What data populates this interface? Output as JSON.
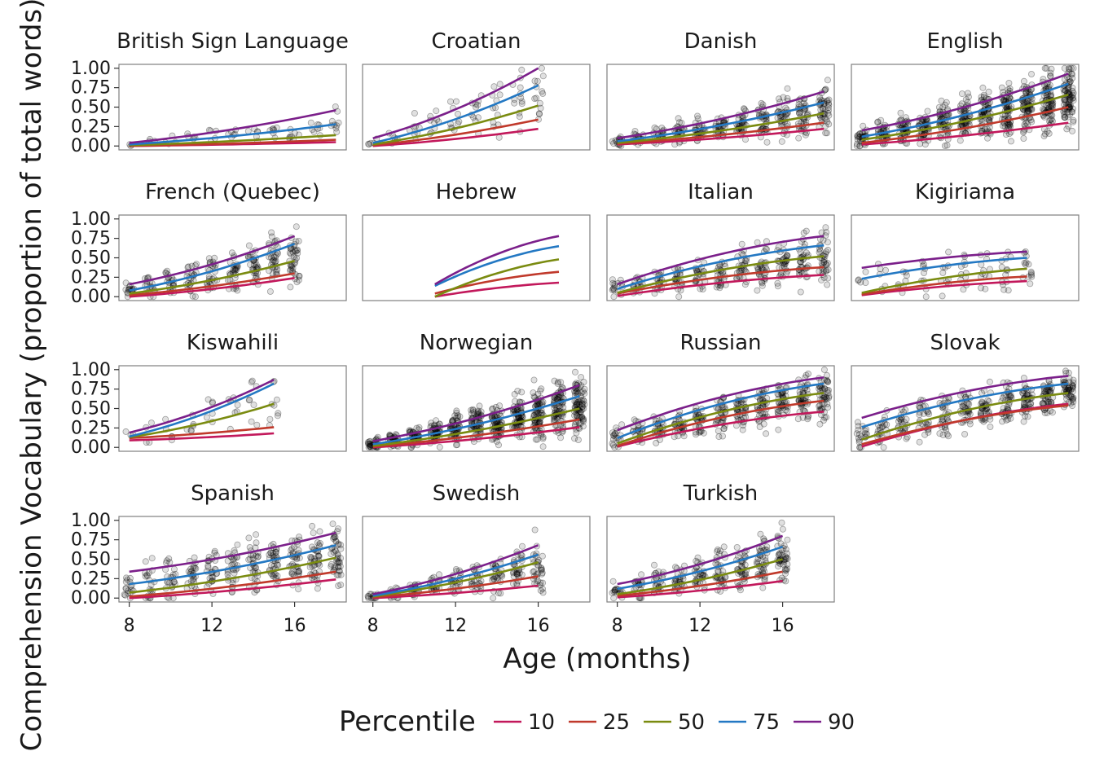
{
  "chart_data": {
    "type": "line",
    "xlabel": "Age (months)",
    "ylabel": "Comprehension Vocabulary (proportion of total words)",
    "xlim": [
      7.5,
      18.5
    ],
    "ylim": [
      -0.05,
      1.05
    ],
    "x_ticks": [
      8,
      12,
      16
    ],
    "y_ticks": [
      0,
      0.25,
      0.5,
      0.75,
      1
    ],
    "y_tick_labels": [
      "0.00",
      "0.25",
      "0.50",
      "0.75",
      "1.00"
    ],
    "legend": {
      "title": "Percentile",
      "position": "bottom",
      "entries": [
        {
          "label": "10",
          "color": "#c2185b"
        },
        {
          "label": "25",
          "color": "#c0392b"
        },
        {
          "label": "50",
          "color": "#7a8b10"
        },
        {
          "label": "75",
          "color": "#2378c3"
        },
        {
          "label": "90",
          "color": "#7b1f8a"
        }
      ]
    },
    "points_note": "individual children shown as semi-transparent grey points",
    "panels": [
      {
        "name": "British Sign Language",
        "xrange": [
          8,
          18
        ],
        "density": 0.3,
        "curves": {
          "10": [
            0.0,
            0.05
          ],
          "25": [
            0.0,
            0.08
          ],
          "50": [
            0.01,
            0.14
          ],
          "75": [
            0.02,
            0.28
          ],
          "90": [
            0.04,
            0.46
          ]
        }
      },
      {
        "name": "Croatian",
        "xrange": [
          8,
          16
        ],
        "density": 0.5,
        "curves": {
          "10": [
            0.0,
            0.22
          ],
          "25": [
            0.01,
            0.34
          ],
          "50": [
            0.02,
            0.52
          ],
          "75": [
            0.04,
            0.78
          ],
          "90": [
            0.1,
            1.0
          ]
        }
      },
      {
        "name": "Danish",
        "xrange": [
          8,
          18
        ],
        "density": 1.6,
        "curves": {
          "10": [
            0.02,
            0.22
          ],
          "25": [
            0.03,
            0.3
          ],
          "50": [
            0.04,
            0.42
          ],
          "75": [
            0.06,
            0.56
          ],
          "90": [
            0.1,
            0.7
          ]
        }
      },
      {
        "name": "English",
        "xrange": [
          8,
          18
        ],
        "density": 3.0,
        "curves": {
          "10": [
            0.02,
            0.3
          ],
          "25": [
            0.04,
            0.5
          ],
          "50": [
            0.08,
            0.66
          ],
          "75": [
            0.12,
            0.8
          ],
          "90": [
            0.2,
            0.93
          ]
        }
      },
      {
        "name": "French (Quebec)",
        "xrange": [
          8,
          16
        ],
        "density": 1.4,
        "curves": {
          "10": [
            0.0,
            0.24
          ],
          "25": [
            0.02,
            0.3
          ],
          "50": [
            0.04,
            0.46
          ],
          "75": [
            0.08,
            0.68
          ],
          "90": [
            0.16,
            0.78
          ]
        }
      },
      {
        "name": "Hebrew",
        "xrange": [
          11,
          17
        ],
        "density": 0.0,
        "curves": {
          "10": [
            0.0,
            0.18
          ],
          "25": [
            0.04,
            0.32
          ],
          "50": [
            0.0,
            0.48
          ],
          "75": [
            0.14,
            0.65
          ],
          "90": [
            0.16,
            0.78
          ]
        }
      },
      {
        "name": "Italian",
        "xrange": [
          8,
          18
        ],
        "density": 1.4,
        "curves": {
          "10": [
            0.01,
            0.28
          ],
          "25": [
            0.04,
            0.38
          ],
          "50": [
            0.05,
            0.52
          ],
          "75": [
            0.1,
            0.66
          ],
          "90": [
            0.16,
            0.78
          ]
        }
      },
      {
        "name": "Kigiriama",
        "xrange": [
          8,
          16
        ],
        "density": 0.5,
        "curves": {
          "10": [
            0.02,
            0.2
          ],
          "25": [
            0.03,
            0.26
          ],
          "50": [
            0.05,
            0.36
          ],
          "75": [
            0.23,
            0.5
          ],
          "90": [
            0.37,
            0.58
          ]
        }
      },
      {
        "name": "Kiswahili",
        "xrange": [
          8,
          15
        ],
        "density": 0.3,
        "curves": {
          "10": [
            0.09,
            0.18
          ],
          "25": [
            0.12,
            0.26
          ],
          "50": [
            0.13,
            0.56
          ],
          "75": [
            0.14,
            0.82
          ],
          "90": [
            0.19,
            0.87
          ]
        }
      },
      {
        "name": "Norwegian",
        "xrange": [
          8,
          18
        ],
        "density": 3.0,
        "curves": {
          "10": [
            0.0,
            0.26
          ],
          "25": [
            0.01,
            0.36
          ],
          "50": [
            0.02,
            0.5
          ],
          "75": [
            0.04,
            0.66
          ],
          "90": [
            0.08,
            0.8
          ]
        }
      },
      {
        "name": "Russian",
        "xrange": [
          8,
          18
        ],
        "density": 1.8,
        "curves": {
          "10": [
            0.01,
            0.46
          ],
          "25": [
            0.02,
            0.6
          ],
          "50": [
            0.05,
            0.7
          ],
          "75": [
            0.12,
            0.82
          ],
          "90": [
            0.22,
            0.9
          ]
        }
      },
      {
        "name": "Slovak",
        "xrange": [
          8,
          18
        ],
        "density": 1.8,
        "curves": {
          "10": [
            0.01,
            0.56
          ],
          "25": [
            0.04,
            0.54
          ],
          "50": [
            0.1,
            0.7
          ],
          "75": [
            0.26,
            0.82
          ],
          "90": [
            0.38,
            0.92
          ]
        }
      },
      {
        "name": "Spanish",
        "xrange": [
          8,
          18
        ],
        "density": 1.6,
        "curves": {
          "10": [
            0.0,
            0.24
          ],
          "25": [
            0.02,
            0.34
          ],
          "50": [
            0.07,
            0.52
          ],
          "75": [
            0.18,
            0.68
          ],
          "90": [
            0.34,
            0.84
          ]
        }
      },
      {
        "name": "Swedish",
        "xrange": [
          8,
          16
        ],
        "density": 1.2,
        "curves": {
          "10": [
            0.0,
            0.16
          ],
          "25": [
            0.01,
            0.28
          ],
          "50": [
            0.02,
            0.46
          ],
          "75": [
            0.03,
            0.56
          ],
          "90": [
            0.05,
            0.68
          ]
        }
      },
      {
        "name": "Turkish",
        "xrange": [
          8,
          16
        ],
        "density": 1.6,
        "curves": {
          "10": [
            0.01,
            0.22
          ],
          "25": [
            0.03,
            0.34
          ],
          "50": [
            0.05,
            0.5
          ],
          "75": [
            0.12,
            0.66
          ],
          "90": [
            0.18,
            0.8
          ]
        }
      }
    ]
  }
}
